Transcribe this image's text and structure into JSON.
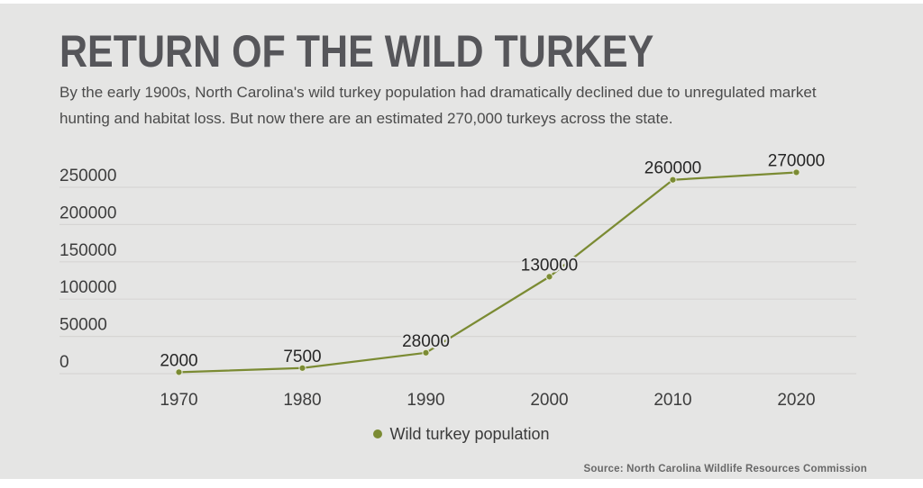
{
  "header": {
    "title": "RETURN OF THE WILD TURKEY",
    "subtitle_line1": "By the early 1900s, North Carolina's wild turkey population had dramatically declined due to unregulated market",
    "subtitle_line2": "hunting and habitat loss. But now there are an estimated 270,000 turkeys across the state."
  },
  "legend": {
    "label": "Wild turkey population"
  },
  "footer": {
    "source": "Source: North Carolina Wildlife Resources Commission"
  },
  "colors": {
    "background": "#e5e5e4",
    "accent": "#7b8b33",
    "marker_ring": "#e9ebda",
    "grid": "#d6d5d3",
    "tick_label": "#3d3d3d",
    "data_label": "#262626",
    "title": "#56565a",
    "body_text": "#4b4b4b"
  },
  "chart_data": {
    "type": "line",
    "title": "",
    "xlabel": "",
    "ylabel": "",
    "categories": [
      "1970",
      "1980",
      "1990",
      "2000",
      "2010",
      "2020"
    ],
    "series": [
      {
        "name": "Wild turkey population",
        "values": [
          2000,
          7500,
          28000,
          130000,
          260000,
          270000
        ]
      }
    ],
    "data_labels": [
      2000,
      7500,
      28000,
      130000,
      260000,
      270000
    ],
    "yticks": [
      0,
      50000,
      100000,
      150000,
      200000,
      250000
    ],
    "ylim": [
      0,
      270000
    ],
    "grid": "horizontal",
    "legend_position": "bottom"
  }
}
